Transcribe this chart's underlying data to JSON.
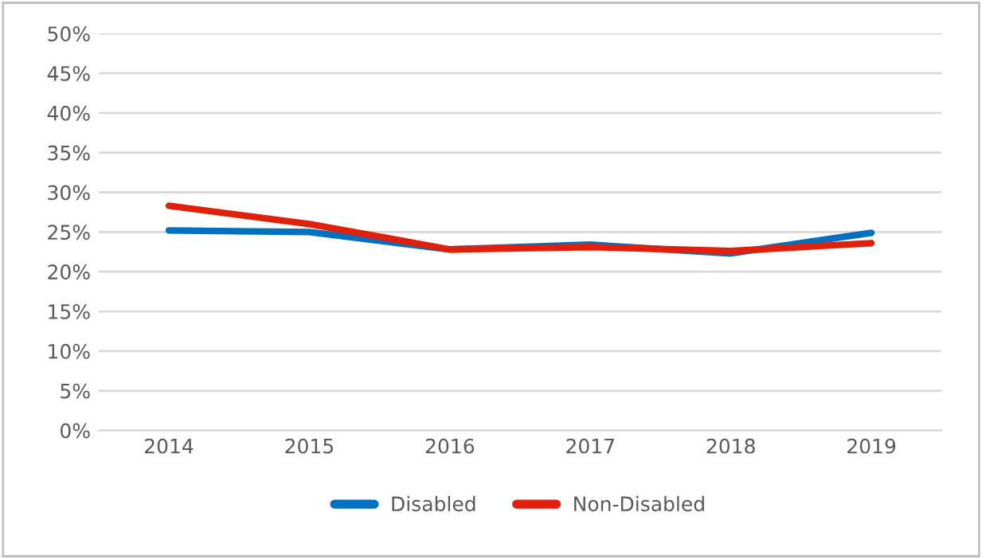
{
  "chart_data": {
    "type": "line",
    "categories": [
      "2014",
      "2015",
      "2016",
      "2017",
      "2018",
      "2019"
    ],
    "series": [
      {
        "name": "Disabled",
        "color": "#0070c0",
        "values": [
          25.2,
          25.0,
          22.8,
          23.4,
          22.3,
          24.9
        ]
      },
      {
        "name": "Non-Disabled",
        "color": "#e0200a",
        "values": [
          28.3,
          26.0,
          22.8,
          23.1,
          22.6,
          23.6
        ]
      }
    ],
    "ylim": [
      0,
      50
    ],
    "yticks": [
      {
        "value": 0,
        "label": "0%"
      },
      {
        "value": 5,
        "label": "5%"
      },
      {
        "value": 10,
        "label": "10%"
      },
      {
        "value": 15,
        "label": "15%"
      },
      {
        "value": 20,
        "label": "20%"
      },
      {
        "value": 25,
        "label": "25%"
      },
      {
        "value": 30,
        "label": "30%"
      },
      {
        "value": 35,
        "label": "35%"
      },
      {
        "value": 40,
        "label": "40%"
      },
      {
        "value": 45,
        "label": "45%"
      },
      {
        "value": 50,
        "label": "50%"
      }
    ],
    "grid": "y",
    "legend": "bottom",
    "marker": "none",
    "line_style": "solid"
  }
}
